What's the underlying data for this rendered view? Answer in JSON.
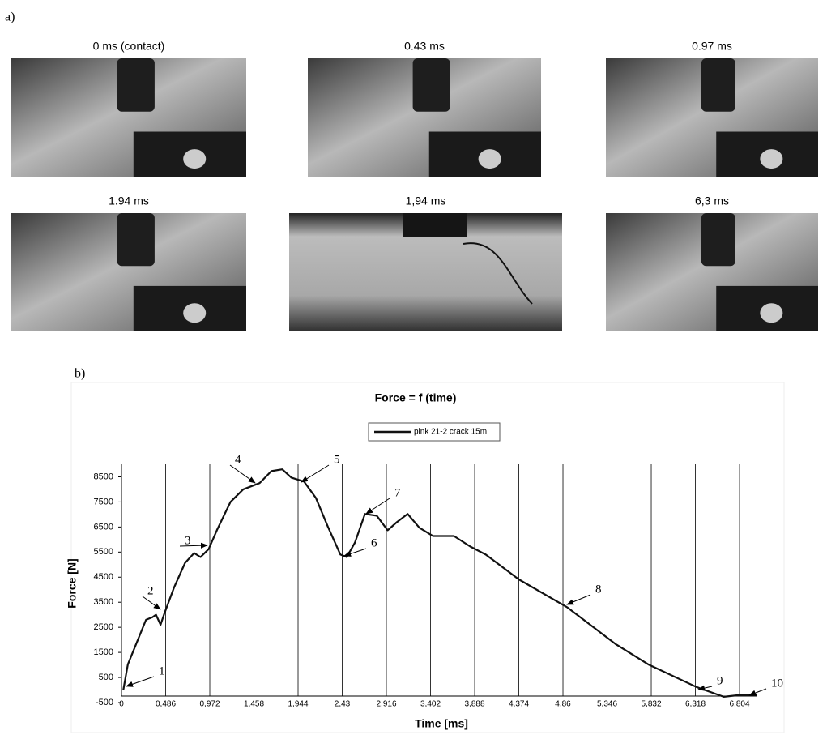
{
  "panel_a": {
    "label": "a)",
    "captions": [
      "0 ms (contact)",
      "0.43 ms",
      "0.97 ms",
      "1.94 ms",
      "1,94 ms",
      "6,3 ms"
    ]
  },
  "chart_data": {
    "type": "line",
    "panel_label": "b)",
    "title": "Force = f (time)",
    "x_label": "Time [ms]",
    "y_label": "Force [N]",
    "x": [
      0.02,
      0.07,
      0.18,
      0.27,
      0.34,
      0.38,
      0.43,
      0.47,
      0.58,
      0.7,
      0.8,
      0.87,
      0.96,
      1.05,
      1.2,
      1.34,
      1.52,
      1.65,
      1.77,
      1.87,
      2.01,
      2.14,
      2.27,
      2.41,
      2.48,
      2.57,
      2.68,
      2.81,
      2.93,
      3.03,
      3.15,
      3.28,
      3.43,
      3.66,
      3.84,
      4.01,
      4.37,
      4.91,
      5.44,
      5.8,
      6.33,
      6.63,
      6.78,
      7.0
    ],
    "series": [
      {
        "name": "pink 21-2 crack 15m",
        "color": "#111111",
        "values": [
          0,
          1020,
          2000,
          2800,
          2900,
          3000,
          2600,
          3030,
          4100,
          5070,
          5460,
          5300,
          5620,
          6370,
          7500,
          8000,
          8250,
          8730,
          8800,
          8470,
          8310,
          7660,
          6530,
          5400,
          5300,
          5880,
          7020,
          6950,
          6370,
          6690,
          7020,
          6470,
          6140,
          6140,
          5720,
          5400,
          4420,
          3290,
          1830,
          1020,
          120,
          -270,
          -210,
          -210
        ]
      }
    ],
    "xlim": [
      0,
      7.0
    ],
    "ylim": [
      -500,
      9000
    ],
    "xticks": [
      0,
      {
        "value": 0.486,
        "label": "0,486"
      },
      {
        "value": 0.972,
        "label": "0,972"
      },
      {
        "value": 1.458,
        "label": "1,458"
      },
      {
        "value": 1.944,
        "label": "1,944"
      },
      {
        "value": 2.43,
        "label": "2,43"
      },
      {
        "value": 2.916,
        "label": "2,916"
      },
      {
        "value": 3.402,
        "label": "3,402"
      },
      {
        "value": 3.888,
        "label": "3,888"
      },
      {
        "value": 4.374,
        "label": "4,374"
      },
      {
        "value": 4.86,
        "label": "4,86"
      },
      {
        "value": 5.346,
        "label": "5,346"
      },
      {
        "value": 5.832,
        "label": "5,832"
      },
      {
        "value": 6.318,
        "label": "6,318"
      },
      {
        "value": 6.804,
        "label": "6,804"
      }
    ],
    "yticks": [
      -500,
      500,
      1500,
      2500,
      3500,
      4500,
      5500,
      6500,
      7500,
      8500
    ],
    "grid": "x",
    "annotations": [
      "1",
      "2",
      "3",
      "4",
      "5",
      "6",
      "7",
      "8",
      "9",
      "10"
    ]
  }
}
